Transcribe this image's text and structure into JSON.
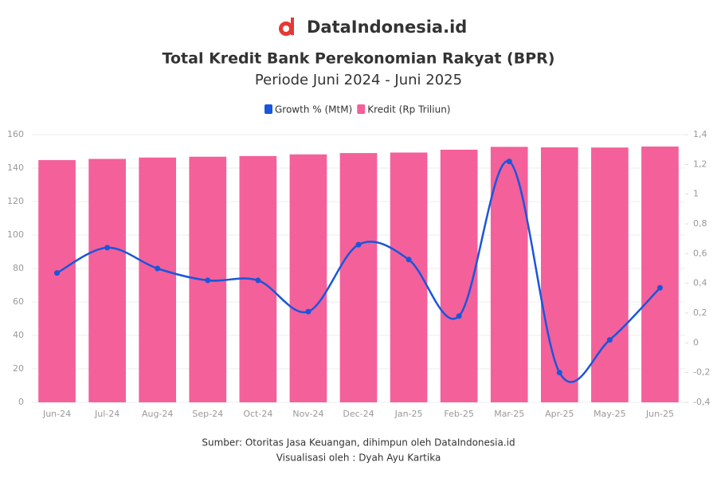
{
  "brand": "DataIndonesia.id",
  "chart_data": {
    "type": "bar",
    "title": "Total Kredit Bank Perekonomian Rakyat (BPR)",
    "subtitle": "Periode Juni 2024 - Juni 2025",
    "categories": [
      "Jun-24",
      "Jul-24",
      "Aug-24",
      "Sep-24",
      "Oct-24",
      "Nov-24",
      "Dec-24",
      "Jan-25",
      "Feb-25",
      "Mar-25",
      "Apr-25",
      "May-25",
      "Jun-25"
    ],
    "series": [
      {
        "name": "Growth % (MtM)",
        "type": "line",
        "axis": "y2",
        "color": "#1a56db",
        "values": [
          0.47,
          0.64,
          0.5,
          0.42,
          0.42,
          0.21,
          0.66,
          0.56,
          0.18,
          1.22,
          -0.2,
          0.02,
          0.37
        ]
      },
      {
        "name": "Kredit (Rp Triliun)",
        "type": "bar",
        "color": "#f4609a",
        "values": [
          144.8,
          145.5,
          146.3,
          146.8,
          147.2,
          148.2,
          149.0,
          149.3,
          151.0,
          152.7,
          152.4,
          152.3,
          152.9
        ]
      }
    ],
    "ylim": [
      0,
      160
    ],
    "yticks": [
      0,
      20,
      40,
      60,
      80,
      100,
      120,
      140,
      160
    ],
    "y2lim": [
      -0.4,
      1.4
    ],
    "y2ticks": [
      {
        "value": -0.4,
        "label": "-0,4"
      },
      {
        "value": -0.2,
        "label": "-0,2"
      },
      0,
      {
        "value": 0.2,
        "label": "0,2"
      },
      {
        "value": 0.4,
        "label": "0,4"
      },
      {
        "value": 0.6,
        "label": "0,6"
      },
      {
        "value": 0.8,
        "label": "0,8"
      },
      {
        "value": 1,
        "label": "1"
      },
      {
        "value": 1.2,
        "label": "1,2"
      },
      {
        "value": 1.4,
        "label": "1,4"
      }
    ],
    "grid": true,
    "source": "Sumber: Otoritas Jasa Keuangan, dihimpun oleh DataIndonesia.id",
    "credit": "Visualisasi oleh : Dyah Ayu Kartika"
  }
}
